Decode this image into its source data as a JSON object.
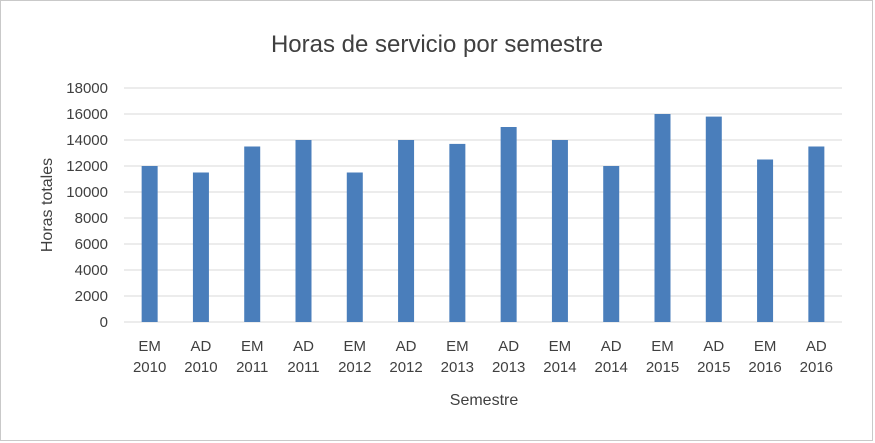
{
  "chart_data": {
    "type": "bar",
    "title": "Horas de servicio por semestre",
    "xlabel": "Semestre",
    "ylabel": "Horas totales",
    "categories": [
      [
        "EM",
        "2010"
      ],
      [
        "AD",
        "2010"
      ],
      [
        "EM",
        "2011"
      ],
      [
        "AD",
        "2011"
      ],
      [
        "EM",
        "2012"
      ],
      [
        "AD",
        "2012"
      ],
      [
        "EM",
        "2013"
      ],
      [
        "AD",
        "2013"
      ],
      [
        "EM",
        "2014"
      ],
      [
        "AD",
        "2014"
      ],
      [
        "EM",
        "2015"
      ],
      [
        "AD",
        "2015"
      ],
      [
        "EM",
        "2016"
      ],
      [
        "AD",
        "2016"
      ]
    ],
    "values": [
      12000,
      11500,
      13500,
      14000,
      11500,
      14000,
      13700,
      15000,
      14000,
      12000,
      16000,
      15800,
      12500,
      13500
    ],
    "ylim": [
      0,
      18000
    ],
    "yticks": [
      "0",
      "2000",
      "4000",
      "6000",
      "8000",
      "10000",
      "12000",
      "14000",
      "16000",
      "18000"
    ],
    "grid": true,
    "legend": "none",
    "bar_color": "#4a7ebb"
  }
}
